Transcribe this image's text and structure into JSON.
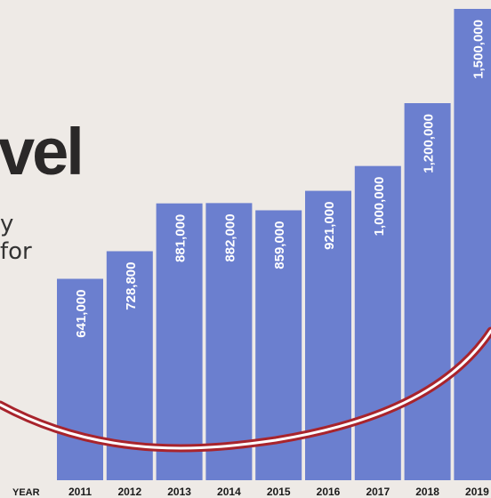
{
  "header": {
    "headline_fragment": "vel",
    "subline_1": "y",
    "subline_2": "for"
  },
  "colors": {
    "bar": "#6b7fcf",
    "bar_label": "#ffffff",
    "curve_outer": "#a8242c",
    "curve_inner": "#ffffff",
    "background": "#eeeae6"
  },
  "chart_data": {
    "type": "bar",
    "xlabel": "YEAR",
    "categories": [
      "2011",
      "2012",
      "2013",
      "2014",
      "2015",
      "2016",
      "2017",
      "2018",
      "2019"
    ],
    "values": [
      641000,
      728800,
      881000,
      882000,
      859000,
      921000,
      1000000,
      1200000,
      1500000
    ],
    "value_labels": [
      "641,000",
      "728,800",
      "881,000",
      "882,000",
      "859,000",
      "921,000",
      "1,000,000",
      "1,200,000",
      "1,500,000"
    ],
    "grid": false,
    "legend": "none"
  }
}
